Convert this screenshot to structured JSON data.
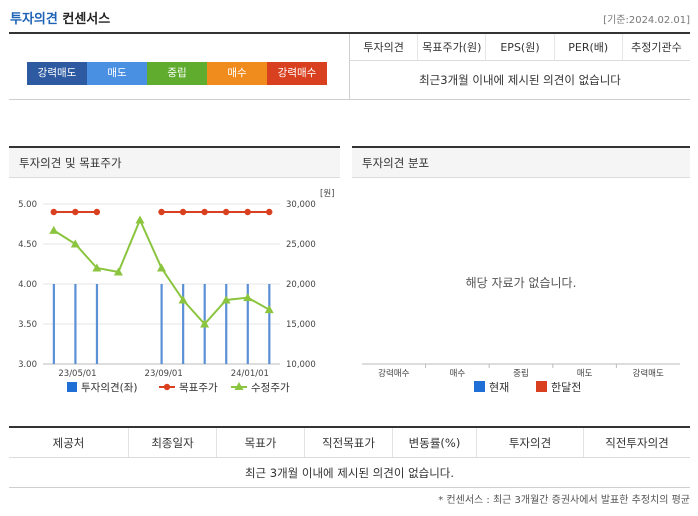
{
  "header": {
    "title_blue": "투자의견",
    "title_dark": "컨센서스",
    "date": "[기준:2024.02.01]"
  },
  "opinion_scale": [
    {
      "label": "강력매도",
      "color": "#2d5aa0"
    },
    {
      "label": "매도",
      "color": "#4a90e2"
    },
    {
      "label": "중립",
      "color": "#5fac2f"
    },
    {
      "label": "매수",
      "color": "#f08c1e"
    },
    {
      "label": "강력매수",
      "color": "#d9401f"
    }
  ],
  "consensus_table": {
    "columns": [
      "투자의견",
      "목표주가(원)",
      "EPS(원)",
      "PER(배)",
      "추정기관수"
    ],
    "empty_message": "최근3개월 이내에 제시된 의견이 없습니다"
  },
  "left_panel": {
    "title": "투자의견 및 목표주가"
  },
  "right_panel": {
    "title": "투자의견 분포",
    "empty_message": "해당 자료가 없습니다.",
    "categories": [
      "강력매수",
      "매수",
      "중립",
      "매도",
      "강력매도"
    ],
    "legend": [
      {
        "label": "현재",
        "color": "#1f6fd6"
      },
      {
        "label": "한달전",
        "color": "#d9401f"
      }
    ]
  },
  "chart_data": {
    "type": "line",
    "y_left_ticks": [
      "5.00",
      "4.50",
      "4.00",
      "3.50",
      "3.00"
    ],
    "y_left_range": [
      3.0,
      5.0
    ],
    "y_right_ticks": [
      "30,000",
      "25,000",
      "20,000",
      "15,000",
      "10,000"
    ],
    "y_right_range": [
      10000,
      30000
    ],
    "y_right_unit": "[원]",
    "x_tick_labels": [
      "23/05/01",
      "23/09/01",
      "24/01/01"
    ],
    "series": [
      {
        "name": "투자의견(좌)",
        "kind": "bar",
        "color": "#5b8fd6",
        "values": [
          4.0,
          4.0,
          4.0,
          null,
          null,
          4.0,
          4.0,
          4.0,
          4.0,
          4.0,
          4.0
        ]
      },
      {
        "name": "목표주가",
        "kind": "line",
        "color": "#d9401f",
        "values": [
          29000,
          29000,
          29000,
          null,
          null,
          29000,
          29000,
          29000,
          29000,
          29000,
          29000
        ]
      },
      {
        "name": "수정주가",
        "kind": "line",
        "color": "#8bc53f",
        "values": [
          26700,
          25000,
          22000,
          21500,
          28000,
          22000,
          18000,
          15000,
          18000,
          18300,
          16800
        ]
      }
    ]
  },
  "bottom_table": {
    "columns": [
      "제공처",
      "최종일자",
      "목표가",
      "직전목표가",
      "변동률(%)",
      "투자의견",
      "직전투자의견"
    ],
    "empty_message": "최근 3개월 이내에 제시된 의견이 없습니다."
  },
  "footnote": "* 컨센서스 : 최근 3개월간 증권사에서 발표한 추정치의 평균"
}
